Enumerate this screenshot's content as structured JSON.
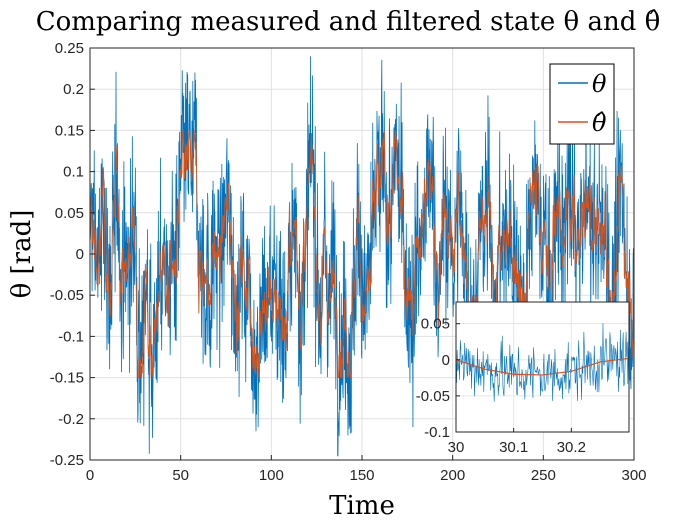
{
  "chart_data": {
    "type": "line",
    "title": "Comparing measured and filtered state θ and θ̂",
    "xlabel": "Time",
    "ylabel": "θ [rad]",
    "xlim": [
      0,
      300
    ],
    "ylim": [
      -0.25,
      0.25
    ],
    "x_ticks": [
      "0",
      "50",
      "100",
      "150",
      "200",
      "250",
      "300"
    ],
    "y_ticks": [
      "0.25",
      "0.2",
      "0.15",
      "0.1",
      "0.05",
      "0",
      "-0.05",
      "-0.1",
      "-0.15",
      "-0.2",
      "-0.25"
    ],
    "grid": true,
    "legend_position": "top-right",
    "series": [
      {
        "name": "θ",
        "color": "#0072BD",
        "description": "measured state, noisy signal with amplitude up to about ±0.24"
      },
      {
        "name": "θ̂",
        "color": "#D95319",
        "description": "filtered state, smoother signal with amplitude up to about ±0.15"
      }
    ],
    "inset": {
      "xlim": [
        30,
        30.3
      ],
      "ylim": [
        -0.1,
        0.08
      ],
      "x_ticks": [
        "30",
        "30.1",
        "30.2"
      ],
      "y_ticks": [
        "0.05",
        "0",
        "-0.05",
        "-0.1"
      ],
      "filtered_curve": [
        {
          "x": 30.0,
          "y": 0.0
        },
        {
          "x": 30.05,
          "y": -0.013
        },
        {
          "x": 30.1,
          "y": -0.02
        },
        {
          "x": 30.15,
          "y": -0.021
        },
        {
          "x": 30.2,
          "y": -0.016
        },
        {
          "x": 30.25,
          "y": -0.003
        },
        {
          "x": 30.3,
          "y": 0.002
        }
      ]
    }
  }
}
